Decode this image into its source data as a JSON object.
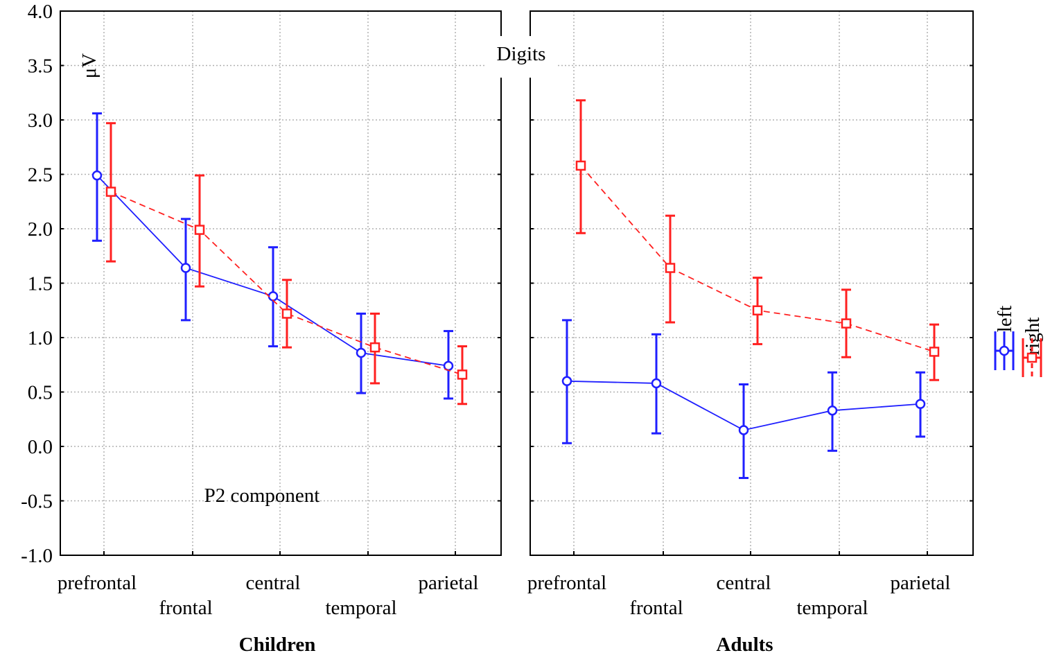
{
  "chart_data": {
    "type": "line",
    "title": "Digits",
    "ylabel": "μV",
    "annotation": "P2 component",
    "ylim": [
      -1.0,
      4.0
    ],
    "yticks": [
      "4.0",
      "3.5",
      "3.0",
      "2.5",
      "2.0",
      "1.5",
      "1.0",
      "0.5",
      "0.0",
      "-0.5",
      "-1.0"
    ],
    "grid": true,
    "legend_placement": "right",
    "categories": [
      "prefrontal",
      "frontal",
      "central",
      "temporal",
      "parietal"
    ],
    "colors": {
      "left": "#1f1fff",
      "right": "#ff2020"
    },
    "panels": [
      {
        "xlabel": "Children",
        "series": [
          {
            "name": "left",
            "values": [
              2.49,
              1.64,
              1.38,
              0.86,
              0.74
            ],
            "lower": [
              1.89,
              1.16,
              0.92,
              0.49,
              0.44
            ],
            "upper": [
              3.06,
              2.09,
              1.83,
              1.22,
              1.06
            ]
          },
          {
            "name": "right",
            "values": [
              2.34,
              1.99,
              1.22,
              0.91,
              0.66
            ],
            "lower": [
              1.7,
              1.47,
              0.91,
              0.58,
              0.39
            ],
            "upper": [
              2.97,
              2.49,
              1.53,
              1.22,
              0.92
            ]
          }
        ]
      },
      {
        "xlabel": "Adults",
        "series": [
          {
            "name": "left",
            "values": [
              0.6,
              0.58,
              0.15,
              0.33,
              0.39
            ],
            "lower": [
              0.03,
              0.12,
              -0.29,
              -0.04,
              0.09
            ],
            "upper": [
              1.16,
              1.03,
              0.57,
              0.68,
              0.68
            ]
          },
          {
            "name": "right",
            "values": [
              2.58,
              1.64,
              1.25,
              1.13,
              0.87
            ],
            "lower": [
              1.96,
              1.14,
              0.94,
              0.82,
              0.61
            ],
            "upper": [
              3.18,
              2.12,
              1.55,
              1.44,
              1.12
            ]
          }
        ]
      }
    ]
  }
}
